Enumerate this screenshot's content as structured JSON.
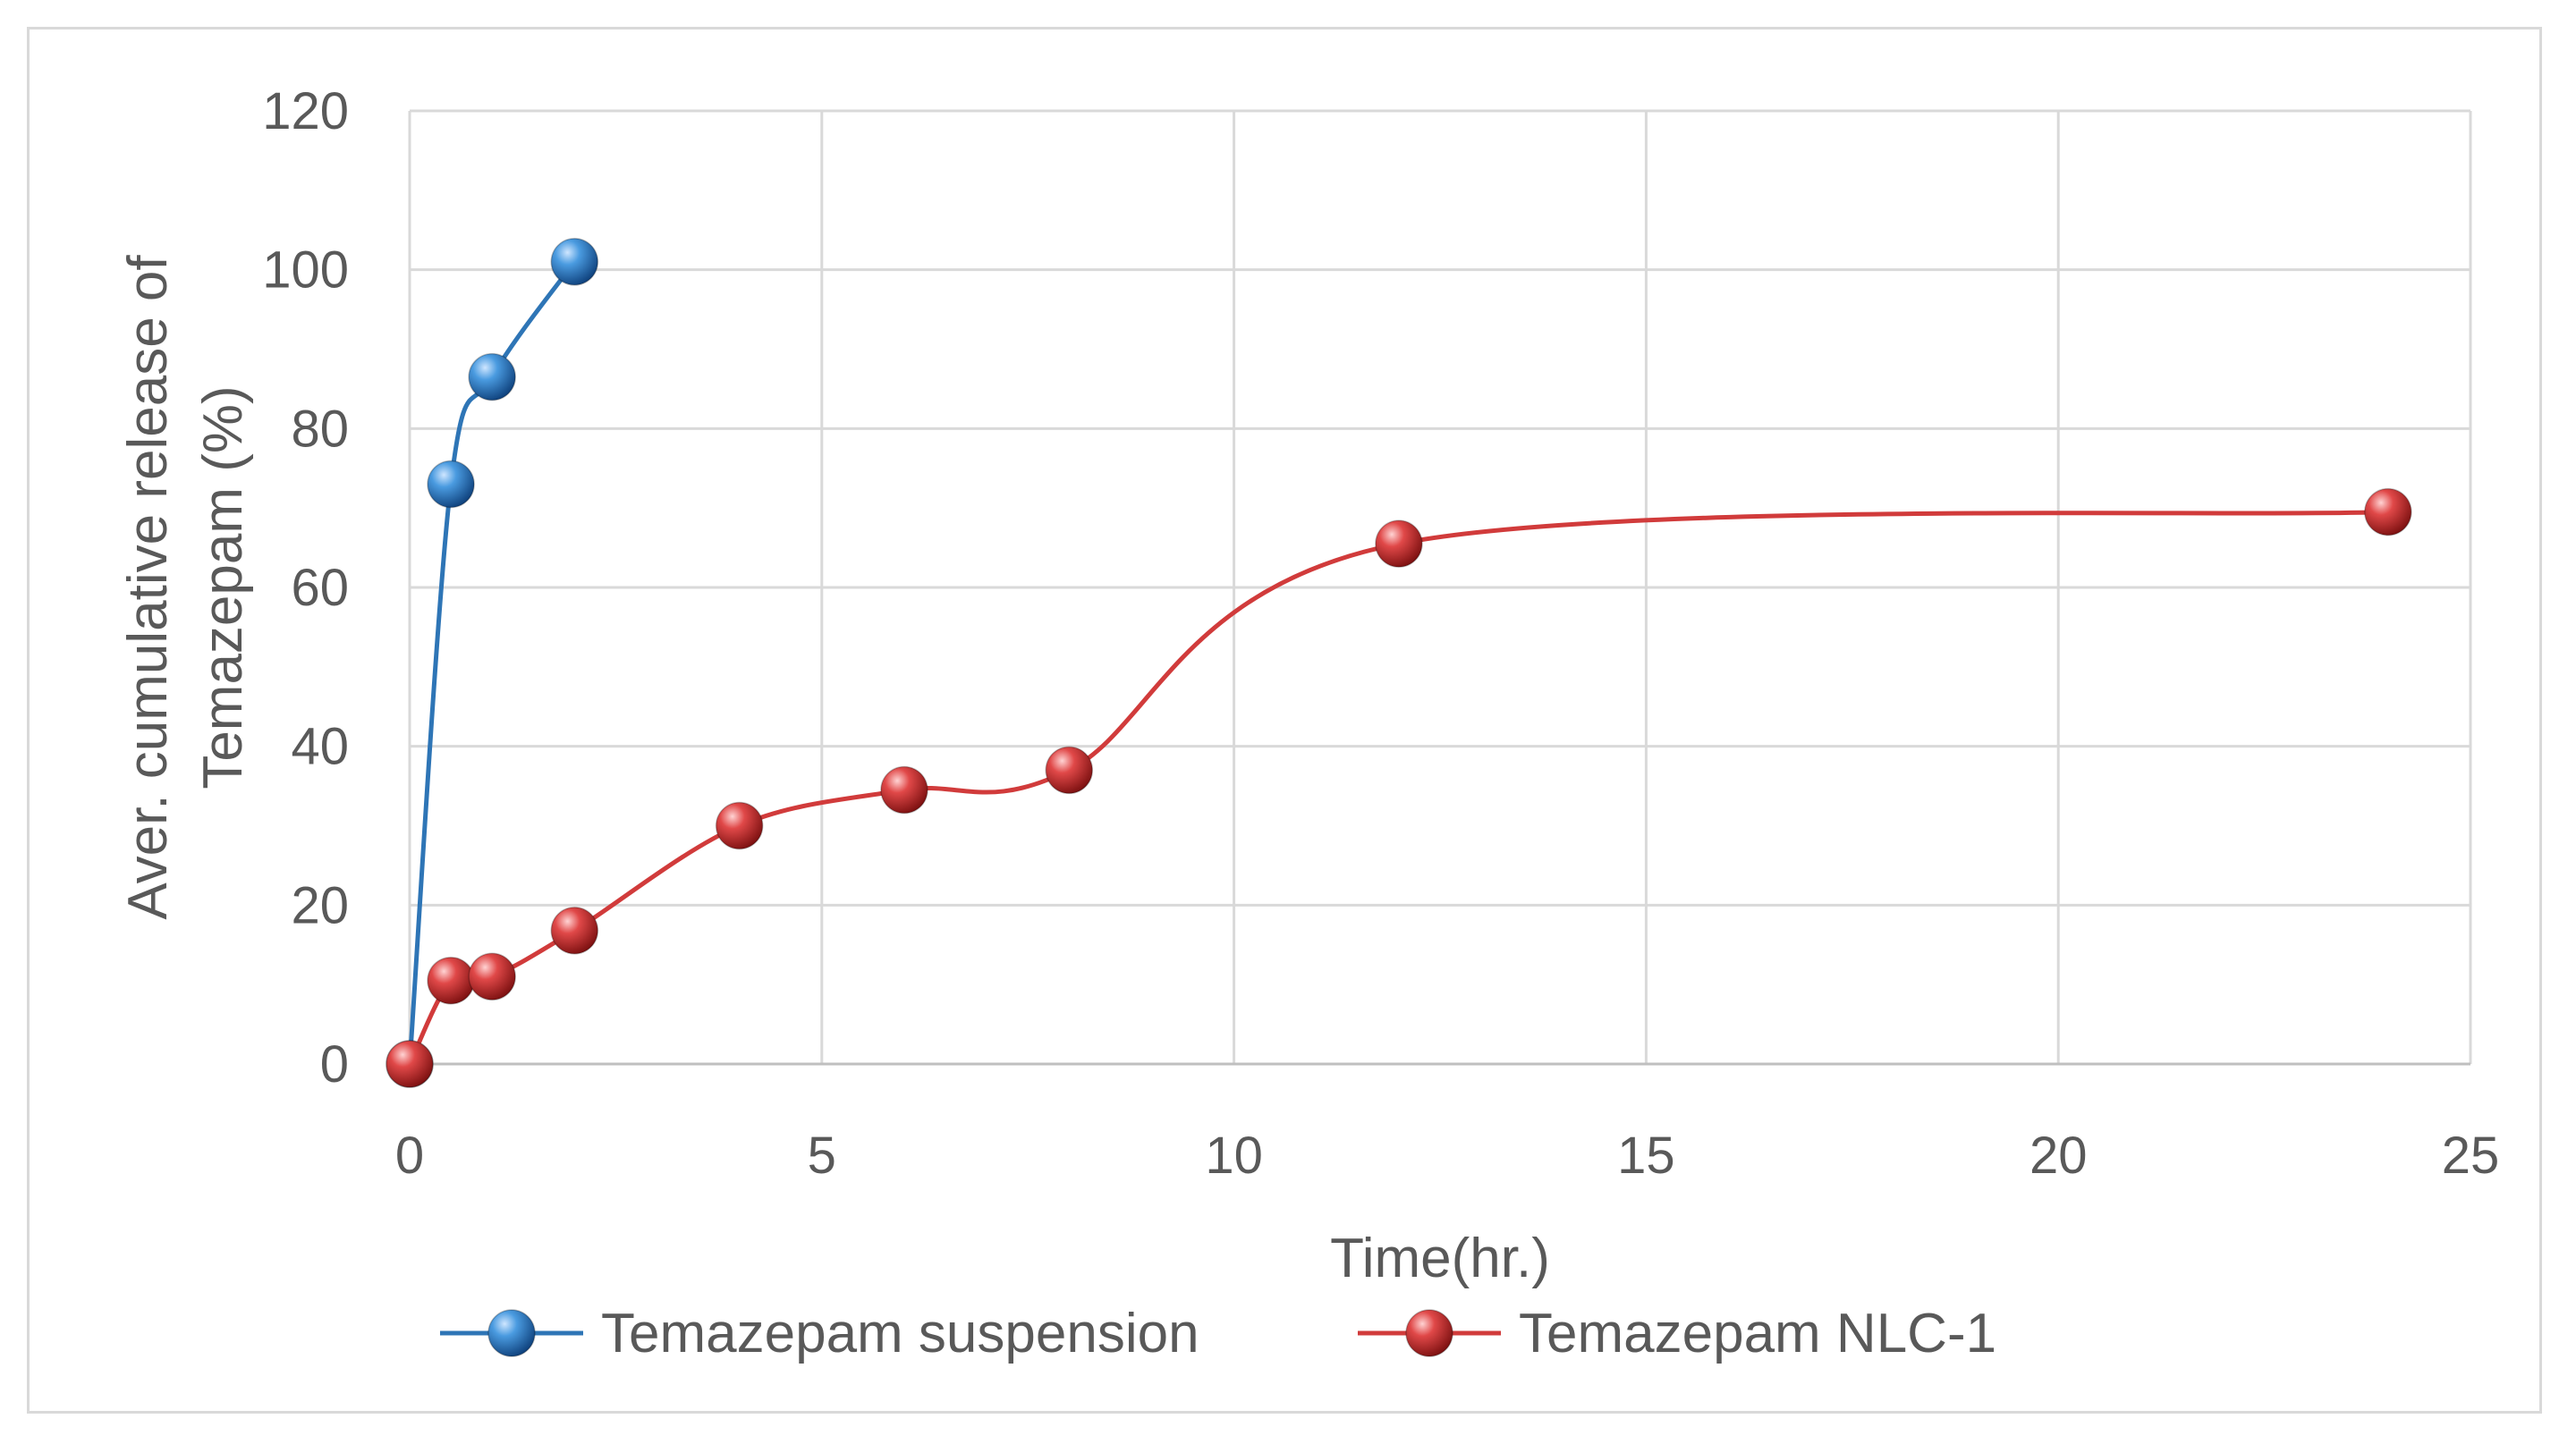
{
  "chart_data": {
    "type": "line",
    "title": "",
    "xlabel": "Time(hr.)",
    "ylabel_lines": [
      "Aver. cumulative release  of",
      "Temazepam (%)"
    ],
    "xlim": [
      0,
      25
    ],
    "ylim": [
      0,
      120
    ],
    "xticks": [
      0,
      5,
      10,
      15,
      20,
      25
    ],
    "yticks": [
      0,
      20,
      40,
      60,
      80,
      100,
      120
    ],
    "grid": true,
    "legend_position": "bottom",
    "series": [
      {
        "name": "Temazepam suspension",
        "color": "#2e75b6",
        "x": [
          0,
          0.5,
          1,
          2
        ],
        "y": [
          0,
          73,
          86.5,
          101
        ]
      },
      {
        "name": "Temazepam NLC-1",
        "color": "#d13b3b",
        "x": [
          0,
          0.5,
          1,
          2,
          4,
          6,
          8,
          12,
          24
        ],
        "y": [
          0,
          10.5,
          11,
          16.8,
          30,
          34.5,
          37,
          65.5,
          69.5
        ]
      }
    ]
  }
}
